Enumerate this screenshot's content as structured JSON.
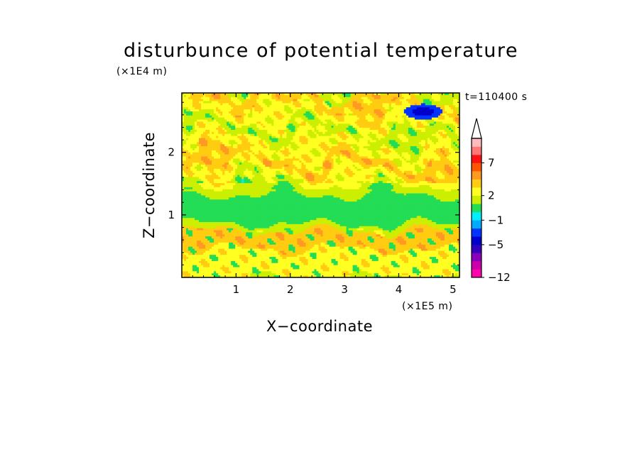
{
  "chart_data": {
    "type": "heatmap",
    "title": "disturbunce of potential temperature",
    "xlabel": "X−coordinate",
    "ylabel": "Z−coordinate",
    "x_unit": "(×1E5 m)",
    "y_unit": "(×1E4 m)",
    "time_label": "t=110400 s",
    "xlim": [
      0,
      5.12
    ],
    "ylim": [
      0,
      2.95
    ],
    "x_ticks": [
      1,
      2,
      3,
      4,
      5
    ],
    "x_tick_labels": [
      "1",
      "2",
      "3",
      "4",
      "5"
    ],
    "y_ticks": [
      1,
      2
    ],
    "y_tick_labels": [
      "1",
      "2"
    ],
    "colorbar": {
      "levels": [
        -12,
        -11,
        -9,
        -7,
        -5,
        -3,
        -2,
        -1,
        0,
        1,
        2,
        3,
        4,
        5,
        7,
        9,
        11
      ],
      "labeled_levels": [
        -12,
        -5,
        -1,
        2,
        7
      ],
      "labels": [
        "−12",
        "−5",
        "−1",
        "2",
        "7"
      ],
      "colors": [
        "#ff00aa",
        "#cc00aa",
        "#8800bb",
        "#3300bb",
        "#0000cc",
        "#0033ff",
        "#00aaff",
        "#00eeff",
        "#22dd55",
        "#ccee00",
        "#ffff22",
        "#ffcc11",
        "#ff9922",
        "#ff5500",
        "#ff1111",
        "#ff7777",
        "#ffbbbb"
      ],
      "extend": "max"
    },
    "bands_z": [
      {
        "z0": 0.0,
        "z1": 0.1,
        "level": 2
      },
      {
        "z0": 0.1,
        "z1": 0.45,
        "level": 2
      },
      {
        "z0": 0.45,
        "z1": 0.75,
        "level": 3
      },
      {
        "z0": 0.75,
        "z1": 0.85,
        "level": 1
      },
      {
        "z0": 0.85,
        "z1": 1.32,
        "level": 0
      },
      {
        "z0": 1.32,
        "z1": 1.5,
        "level": 1
      },
      {
        "z0": 1.5,
        "z1": 1.72,
        "level": 2
      },
      {
        "z0": 1.72,
        "z1": 1.95,
        "level": 3
      },
      {
        "z0": 1.95,
        "z1": 2.2,
        "level": 2
      },
      {
        "z0": 2.2,
        "z1": 2.45,
        "level": 1
      },
      {
        "z0": 2.45,
        "z1": 2.7,
        "level": 2
      },
      {
        "z0": 2.7,
        "z1": 2.95,
        "level": 3
      }
    ],
    "minimum_region": {
      "x": 4.45,
      "z": 2.65,
      "value": -5
    }
  }
}
